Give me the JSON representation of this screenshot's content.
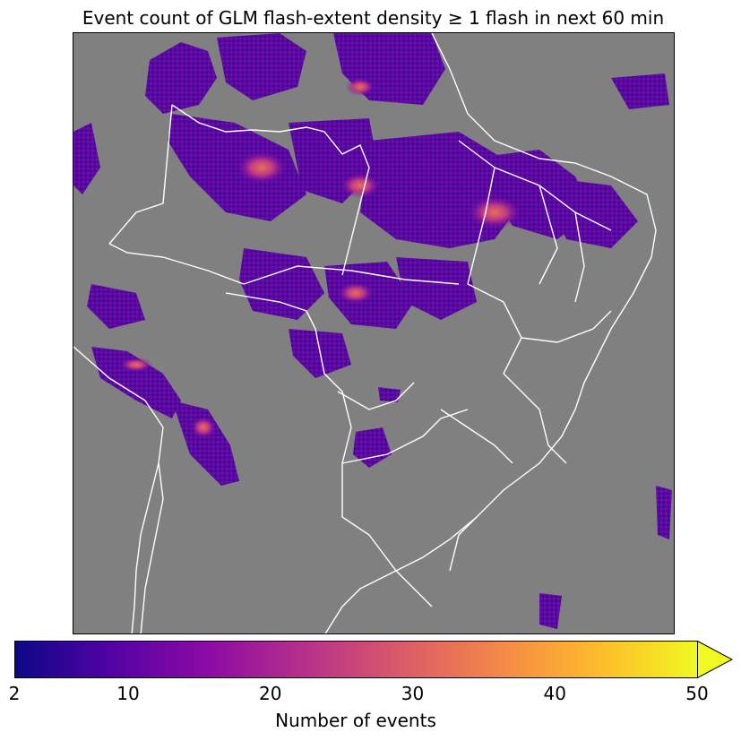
{
  "title": "Event count of GLM flash-extent density ≥ 1 flash in next 60 min",
  "map": {
    "background_color": "#808080",
    "border_color": "#ffffff",
    "region_shown": "South America (Brazil and neighbouring countries)"
  },
  "colorbar": {
    "label": "Number of events",
    "colormap": "plasma",
    "range": [
      2,
      50
    ],
    "extend": "max",
    "ticks": [
      "2",
      "10",
      "20",
      "30",
      "40",
      "50"
    ],
    "colors": [
      "#0d0887",
      "#5302a3",
      "#8b0aa5",
      "#b83289",
      "#db5c68",
      "#f48849",
      "#febd2a",
      "#f0f921"
    ]
  }
}
